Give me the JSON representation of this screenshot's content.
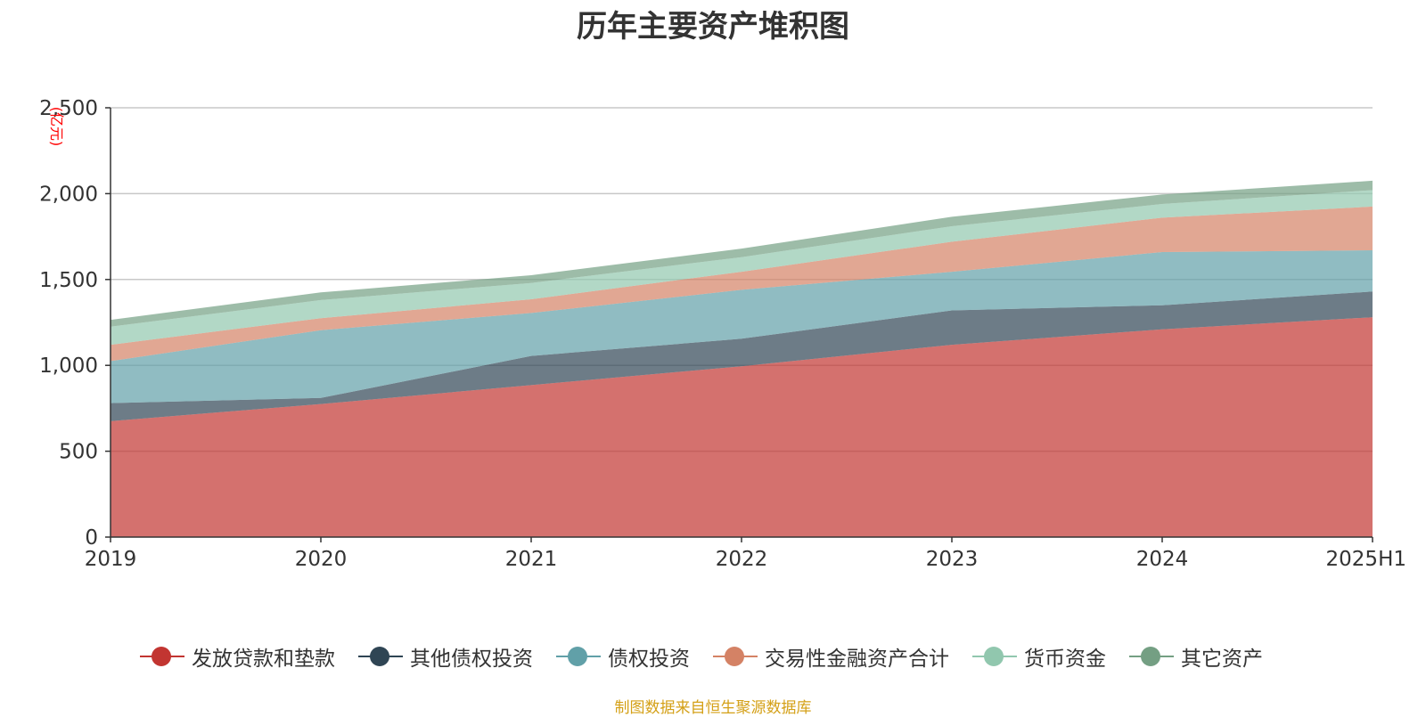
{
  "chart_data": {
    "type": "area",
    "stacked": true,
    "title": "历年主要资产堆积图",
    "ylabel": "(亿元)",
    "xlabel": "",
    "categories": [
      "2019",
      "2020",
      "2021",
      "2022",
      "2023",
      "2024",
      "2025H1"
    ],
    "ylim": [
      0,
      2500
    ],
    "yticks": [
      0,
      500,
      1000,
      1500,
      2000,
      2500
    ],
    "ytick_labels": [
      "0",
      "500",
      "1,000",
      "1,500",
      "2,000",
      "2,500"
    ],
    "grid": true,
    "legend_position": "bottom",
    "series": [
      {
        "name": "发放贷款和垫款",
        "color": "#c23531",
        "values": [
          675,
          775,
          885,
          995,
          1120,
          1210,
          1280
        ]
      },
      {
        "name": "其他债权投资",
        "color": "#2f4554",
        "values": [
          105,
          35,
          170,
          160,
          200,
          140,
          150
        ]
      },
      {
        "name": "债权投资",
        "color": "#61a0a8",
        "values": [
          245,
          395,
          250,
          285,
          225,
          310,
          240
        ]
      },
      {
        "name": "交易性金融资产合计",
        "color": "#d48265",
        "values": [
          95,
          70,
          80,
          105,
          175,
          200,
          255
        ]
      },
      {
        "name": "货币资金",
        "color": "#91c7ae",
        "values": [
          105,
          105,
          95,
          85,
          90,
          80,
          95
        ]
      },
      {
        "name": "其它资产",
        "color": "#749f83",
        "values": [
          40,
          45,
          45,
          50,
          55,
          55,
          55
        ]
      }
    ],
    "source_note": "制图数据来自恒生聚源数据库"
  }
}
